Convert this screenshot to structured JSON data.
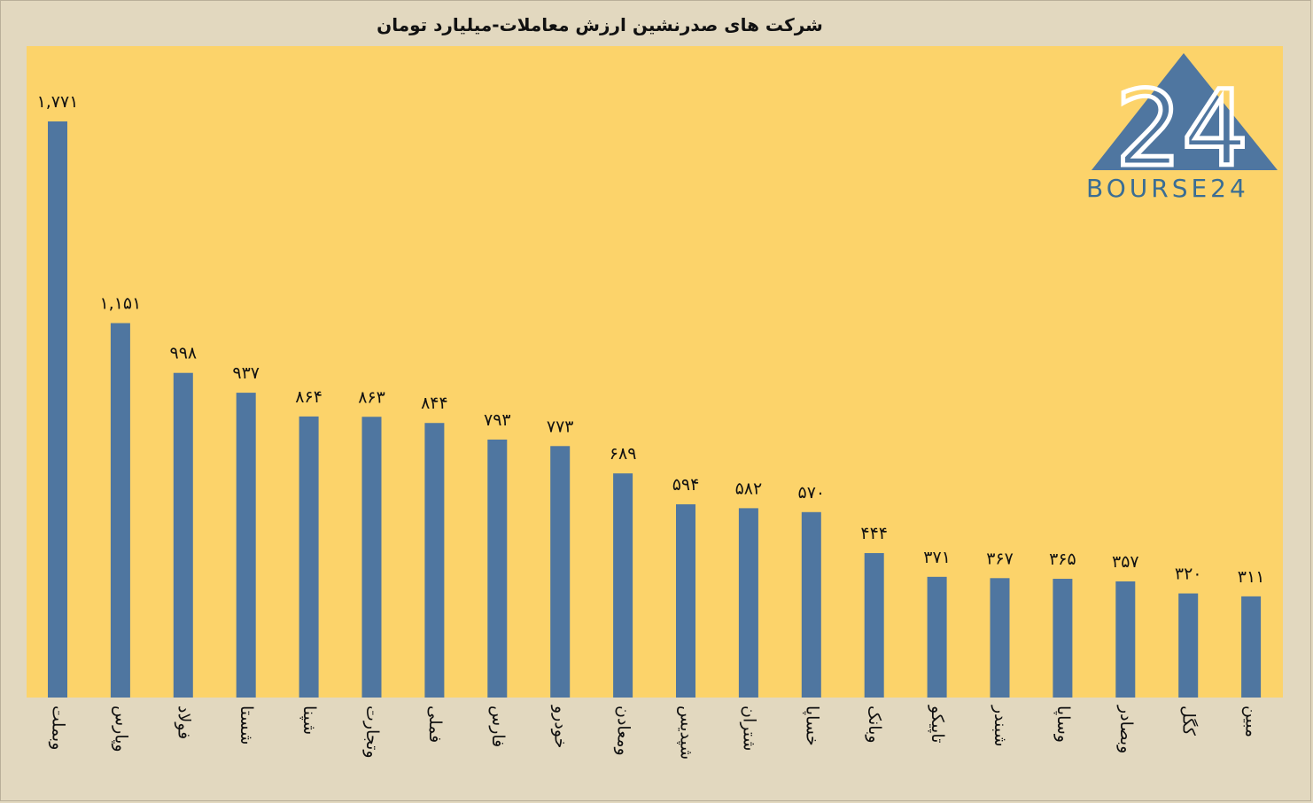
{
  "chart_data": {
    "type": "bar",
    "title": "شرکت های صدرنشین ارزش معاملات-میلیارد تومان",
    "categories": [
      "وبملت",
      "وپارس",
      "فولاد",
      "شستا",
      "شپنا",
      "وتجارت",
      "فملی",
      "فارس",
      "خودرو",
      "ومعادن",
      "شپدیس",
      "شتران",
      "خساپا",
      "وبانک",
      "تاپیکو",
      "شبندر",
      "وساپا",
      "وبصادر",
      "کگل",
      "مبین"
    ],
    "values": [
      1771,
      1151,
      998,
      937,
      864,
      863,
      844,
      793,
      773,
      689,
      594,
      582,
      570,
      444,
      371,
      367,
      365,
      357,
      320,
      311
    ],
    "value_labels": [
      "۱,۷۷۱",
      "۱,۱۵۱",
      "۹۹۸",
      "۹۳۷",
      "۸۶۴",
      "۸۶۳",
      "۸۴۴",
      "۷۹۳",
      "۷۷۳",
      "۶۸۹",
      "۵۹۴",
      "۵۸۲",
      "۵۷۰",
      "۴۴۴",
      "۳۷۱",
      "۳۶۷",
      "۳۶۵",
      "۳۵۷",
      "۳۲۰",
      "۳۱۱"
    ],
    "ylim": [
      0,
      2000
    ],
    "grid": false,
    "colors": {
      "bar": "#4f76a0",
      "plot_background": "#fcd36a",
      "page_background": "#e2d8bf"
    }
  },
  "logo": {
    "number": "24",
    "text": "BOURSE24",
    "color": "#3a6d94"
  }
}
